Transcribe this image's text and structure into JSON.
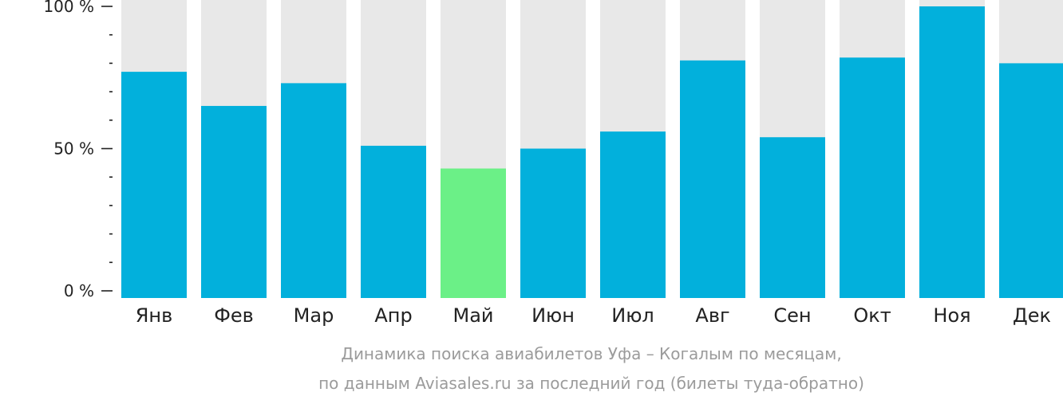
{
  "chart_data": {
    "type": "bar",
    "categories": [
      "Янв",
      "Фев",
      "Мар",
      "Апр",
      "Май",
      "Июн",
      "Июл",
      "Авг",
      "Сен",
      "Окт",
      "Ноя",
      "Дек"
    ],
    "values": [
      77,
      65,
      73,
      51,
      43,
      50,
      56,
      81,
      54,
      82,
      100,
      80
    ],
    "highlight_index": 4,
    "ylim": [
      0,
      100
    ],
    "yticks": [
      {
        "value": 0,
        "label": "0 %"
      },
      {
        "value": 50,
        "label": "50 %"
      },
      {
        "value": 100,
        "label": "100 %"
      }
    ],
    "minor_tick_step": 10,
    "colors": {
      "bar": "#02b0dc",
      "highlight": "#6bf087",
      "background_bar": "#e8e8e8",
      "axis": "#222222",
      "caption": "#9b9b9b"
    },
    "caption": [
      "Динамика поиска авиабилетов Уфа – Когалым по месяцам,",
      "по данным Aviasales.ru за последний год (билеты туда-обратно)"
    ]
  }
}
